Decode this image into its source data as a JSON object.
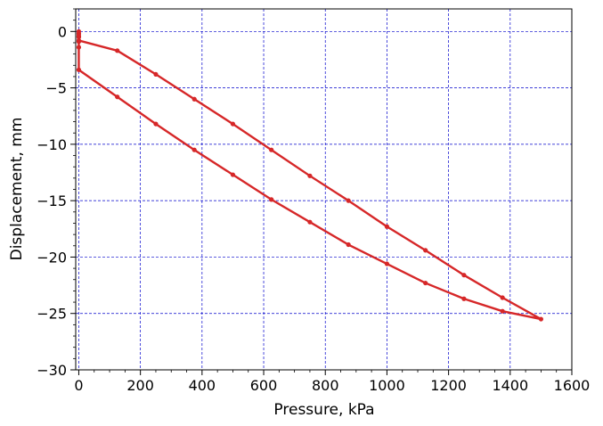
{
  "chart_data": {
    "type": "line",
    "title": "",
    "xlabel": "Pressure, kPa",
    "ylabel": "Displacement, mm",
    "xlim": [
      -10,
      1600
    ],
    "ylim": [
      -30,
      2
    ],
    "xticks": [
      0,
      200,
      400,
      600,
      800,
      1000,
      1200,
      1400,
      1600
    ],
    "yticks": [
      0,
      -5,
      -10,
      -15,
      -20,
      -25,
      -30
    ],
    "xtick_labels": [
      "0",
      "200",
      "400",
      "600",
      "800",
      "1000",
      "1200",
      "1400",
      "1600"
    ],
    "ytick_labels": [
      "0",
      "−5",
      "−10",
      "−15",
      "−20",
      "−25",
      "−30"
    ],
    "grid": true,
    "grid_color": "#0000cc",
    "series": [
      {
        "color": "#d62728",
        "x": [
          0,
          0,
          0,
          0,
          125,
          250,
          375,
          500,
          625,
          750,
          875,
          1000,
          1125,
          1250,
          1375,
          1500,
          1375,
          1250,
          1125,
          1000,
          875,
          750,
          625,
          500,
          375,
          250,
          125,
          0,
          0,
          0,
          0
        ],
        "y": [
          0,
          -0.2,
          -0.5,
          -0.8,
          -1.7,
          -3.8,
          -6.0,
          -8.2,
          -10.5,
          -12.8,
          -15.0,
          -17.3,
          -19.4,
          -21.6,
          -23.6,
          -25.5,
          -24.8,
          -23.7,
          -22.3,
          -20.6,
          -18.9,
          -16.9,
          -14.9,
          -12.7,
          -10.5,
          -8.2,
          -5.8,
          -3.4,
          -1.4,
          -0.9,
          -0.4
        ]
      }
    ]
  }
}
